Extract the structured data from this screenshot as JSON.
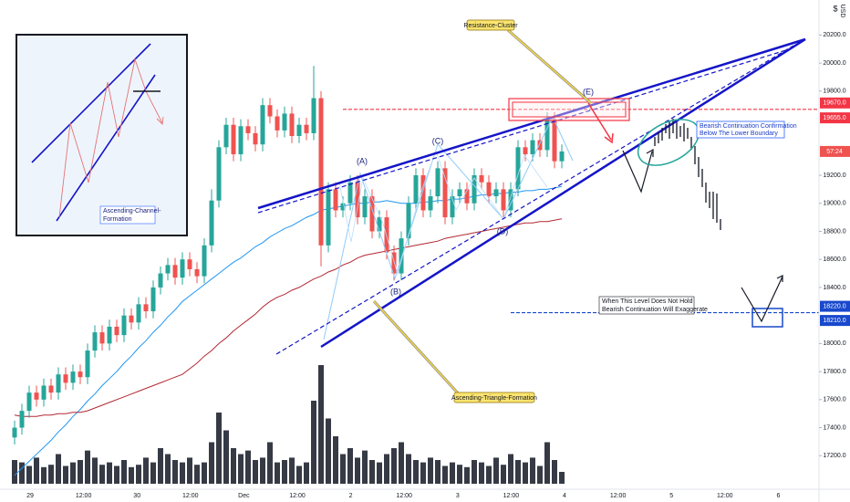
{
  "chart_data": {
    "type": "candlestick",
    "currency_symbol": "$",
    "currency": "USD",
    "open": [
      17330,
      17400,
      17520,
      17650,
      17600,
      17700,
      17650,
      17780,
      17720,
      17800,
      17760,
      17950,
      18080,
      18000,
      18120,
      18060,
      18200,
      18150,
      18280,
      18230,
      18400,
      18500,
      18560,
      18470,
      18600,
      18530,
      18480,
      18700,
      19020,
      19400,
      19560,
      19350,
      19550,
      19500,
      19420,
      19700,
      19620,
      19520,
      19640,
      19480,
      19560,
      19500,
      19750,
      18700,
      19100,
      18950,
      19000,
      19150,
      18900,
      19050,
      18800,
      18900,
      18650,
      18500,
      18750,
      19000,
      19200,
      18950,
      19050,
      19250,
      18900,
      19050,
      19100,
      19000,
      19200,
      19150,
      19050,
      19100,
      18950,
      19100,
      19400,
      19350,
      19450,
      19380,
      19600,
      19300
    ],
    "high": [
      17450,
      17570,
      17700,
      17700,
      17750,
      17750,
      17830,
      17830,
      17850,
      17850,
      18000,
      18130,
      18130,
      18170,
      18170,
      18250,
      18250,
      18330,
      18330,
      18450,
      18550,
      18610,
      18610,
      18650,
      18650,
      18580,
      18750,
      19100,
      19450,
      19610,
      19610,
      19600,
      19600,
      19550,
      19750,
      19750,
      19670,
      19690,
      19690,
      19610,
      19610,
      19980,
      19800,
      19150,
      19150,
      19050,
      19200,
      19200,
      19100,
      19100,
      18950,
      18950,
      18700,
      18800,
      19050,
      19250,
      19250,
      19100,
      19300,
      19300,
      19100,
      19150,
      19150,
      19250,
      19250,
      19200,
      19150,
      19150,
      19150,
      19450,
      19450,
      19500,
      19500,
      19650,
      19650,
      19420
    ],
    "low": [
      17280,
      17350,
      17470,
      17550,
      17550,
      17600,
      17600,
      17670,
      17670,
      17710,
      17710,
      17900,
      17950,
      17950,
      18010,
      18010,
      18100,
      18100,
      18180,
      18180,
      18350,
      18450,
      18420,
      18420,
      18480,
      18430,
      18430,
      18650,
      18970,
      19350,
      19300,
      19300,
      19450,
      19370,
      19370,
      19570,
      19470,
      19470,
      19430,
      19430,
      19450,
      19450,
      18550,
      18650,
      18900,
      18900,
      18950,
      18850,
      18850,
      18750,
      18750,
      18600,
      18450,
      18450,
      18700,
      18950,
      18900,
      18900,
      19000,
      18850,
      18850,
      19000,
      18950,
      18950,
      19100,
      19000,
      19000,
      18900,
      18900,
      19050,
      19300,
      19300,
      19330,
      19330,
      19250,
      19250
    ],
    "close": [
      17400,
      17520,
      17650,
      17600,
      17700,
      17650,
      17780,
      17720,
      17800,
      17760,
      17950,
      18080,
      18000,
      18120,
      18060,
      18200,
      18150,
      18280,
      18230,
      18400,
      18500,
      18560,
      18470,
      18600,
      18530,
      18480,
      18700,
      19020,
      19400,
      19560,
      19350,
      19550,
      19500,
      19420,
      19700,
      19620,
      19520,
      19640,
      19480,
      19560,
      19500,
      19750,
      18700,
      19100,
      18950,
      19000,
      19150,
      18900,
      19050,
      18800,
      18900,
      18650,
      18500,
      18750,
      19000,
      19200,
      18950,
      19050,
      19250,
      18900,
      19050,
      19100,
      19000,
      19200,
      19150,
      19050,
      19100,
      18950,
      19100,
      19400,
      19350,
      19450,
      19380,
      19600,
      19300,
      19370
    ],
    "up_color": "#26a69a",
    "down_color": "#ef5350",
    "volume": {
      "color": "#363a45",
      "y2lim": [
        0,
        100
      ],
      "values": [
        20,
        18,
        15,
        22,
        14,
        16,
        25,
        15,
        18,
        20,
        28,
        22,
        16,
        18,
        15,
        20,
        14,
        16,
        22,
        18,
        30,
        25,
        20,
        18,
        22,
        16,
        18,
        35,
        60,
        45,
        30,
        25,
        28,
        20,
        22,
        35,
        18,
        20,
        22,
        15,
        18,
        70,
        100,
        55,
        40,
        25,
        30,
        22,
        28,
        20,
        18,
        25,
        30,
        35,
        25,
        20,
        18,
        22,
        20,
        15,
        18,
        16,
        14,
        20,
        18,
        15,
        22,
        16,
        25,
        20,
        18,
        22,
        15,
        35,
        20,
        10
      ]
    },
    "moving_averages": [
      {
        "color": "#2196f3",
        "values": [
          17060,
          17110,
          17160,
          17210,
          17260,
          17310,
          17370,
          17420,
          17480,
          17530,
          17590,
          17640,
          17700,
          17750,
          17800,
          17860,
          17910,
          17970,
          18020,
          18080,
          18130,
          18190,
          18240,
          18300,
          18340,
          18380,
          18420,
          18460,
          18500,
          18540,
          18580,
          18610,
          18650,
          18690,
          18720,
          18760,
          18790,
          18820,
          18840,
          18870,
          18900,
          18920,
          18950,
          18960,
          18970,
          18980,
          18990,
          19000,
          19000,
          19010,
          19010,
          19020,
          19010,
          19000,
          19000,
          19000,
          19010,
          19010,
          19020,
          19020,
          19030,
          19030,
          19040,
          19050,
          19060,
          19060,
          19070,
          19070,
          19080,
          19080,
          19090,
          19090,
          19100,
          19100,
          19110,
          19120
        ]
      },
      {
        "color": "#b22833",
        "values": [
          17490,
          17480,
          17480,
          17480,
          17490,
          17490,
          17500,
          17500,
          17510,
          17510,
          17520,
          17540,
          17560,
          17580,
          17600,
          17620,
          17640,
          17660,
          17680,
          17700,
          17720,
          17740,
          17760,
          17780,
          17820,
          17860,
          17910,
          17950,
          18000,
          18040,
          18090,
          18130,
          18170,
          18210,
          18260,
          18300,
          18330,
          18350,
          18380,
          18400,
          18430,
          18460,
          18480,
          18510,
          18530,
          18560,
          18580,
          18610,
          18630,
          18640,
          18650,
          18660,
          18670,
          18680,
          18690,
          18700,
          18710,
          18720,
          18730,
          18750,
          18760,
          18770,
          18780,
          18790,
          18800,
          18810,
          18820,
          18830,
          18840,
          18850,
          18860,
          18860,
          18870,
          18870,
          18880,
          18890
        ]
      }
    ],
    "ylim": [
      17000,
      20450
    ],
    "yticks": [
      {
        "value": 20200,
        "label": "20200.0"
      },
      {
        "value": 20000,
        "label": "20000.0"
      },
      {
        "value": 19800,
        "label": "19800.0"
      },
      {
        "value": 19200,
        "label": "19200.0"
      },
      {
        "value": 19000,
        "label": "19000.0"
      },
      {
        "value": 18800,
        "label": "18800.0"
      },
      {
        "value": 18600,
        "label": "18600.0"
      },
      {
        "value": 18400,
        "label": "18400.0"
      },
      {
        "value": 18000,
        "label": "18000.0"
      },
      {
        "value": 17800,
        "label": "17800.0"
      },
      {
        "value": 17600,
        "label": "17600.0"
      },
      {
        "value": 17400,
        "label": "17400.0"
      },
      {
        "value": 17200,
        "label": "17200.0"
      }
    ],
    "grid": false,
    "x_labels": [
      "29",
      "12:00",
      "30",
      "12:00",
      "Dec",
      "12:00",
      "2",
      "12:00",
      "3",
      "12:00",
      "4",
      "12:00",
      "5",
      "12:00",
      "6"
    ],
    "price_labels": [
      {
        "value": 19670,
        "label": "19670.0",
        "color": "#f23645"
      },
      {
        "value": 19655,
        "label": "19655.0",
        "color": "#f23645"
      },
      {
        "value": 18220,
        "label": "18220.0",
        "color": "#1848cc"
      },
      {
        "value": 18210,
        "label": "18210.0",
        "color": "#1848cc"
      }
    ],
    "countdown": "57:24",
    "annotations": {
      "resistance": "Resistance-Cluster",
      "triangle": "Ascending-Triangle-Formation",
      "confirmation": [
        "Bearish Continuation Confirmation",
        "Below The Lower Boundary"
      ],
      "warning": [
        "When This Level Does Not Hold",
        "Bearish Continuation Will Exaggerate"
      ],
      "channel": [
        "Ascending-Channel-",
        "Formation"
      ]
    },
    "waves": [
      "(A)",
      "(B)",
      "(C)",
      "(D)",
      "(E)"
    ]
  }
}
